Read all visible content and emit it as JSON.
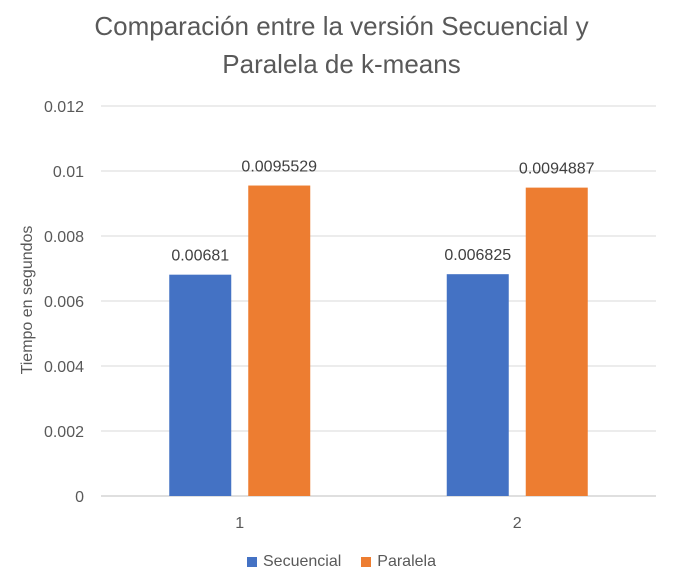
{
  "chart_data": {
    "type": "bar",
    "title_lines": [
      "Comparación entre la versión Secuencial y",
      "Paralela de k-means"
    ],
    "xlabel": "",
    "ylabel": "Tiempo en segundos",
    "categories": [
      "1",
      "2"
    ],
    "ylim": [
      0,
      0.012
    ],
    "yticks": [
      "0",
      "0.002",
      "0.004",
      "0.006",
      "0.008",
      "0.01",
      "0.012"
    ],
    "grid": true,
    "legend_position": "bottom",
    "series": [
      {
        "name": "Secuencial",
        "color": "#4472C4",
        "values": [
          0.00681,
          0.006825
        ],
        "labels": [
          "0.00681",
          "0.006825"
        ]
      },
      {
        "name": "Paralela",
        "color": "#ED7D31",
        "values": [
          0.0095529,
          0.0094887
        ],
        "labels": [
          "0.0095529",
          "0.0094887"
        ]
      }
    ]
  }
}
